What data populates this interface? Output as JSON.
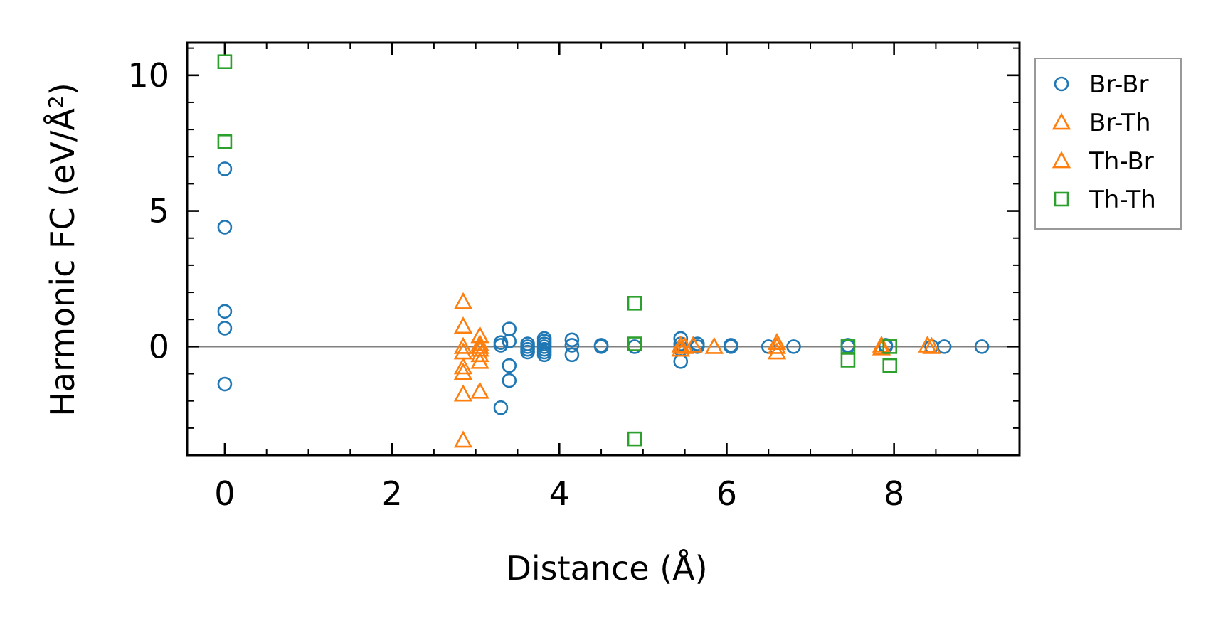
{
  "chart_data": {
    "type": "scatter",
    "title": "",
    "xlabel": "Distance (Å)",
    "ylabel_main": "Harmonic FC (eV/Å",
    "ylabel_sup": "2",
    "ylabel_close": ")",
    "xlim": [
      -0.45,
      9.5
    ],
    "ylim": [
      -4.0,
      11.2
    ],
    "xticks": [
      0,
      2,
      4,
      6,
      8
    ],
    "yticks": [
      0,
      5,
      10
    ],
    "xtick_labels": [
      "0",
      "2",
      "4",
      "6",
      "8"
    ],
    "ytick_labels": [
      "0",
      "5",
      "10"
    ],
    "x_minor_step": 0.5,
    "y_minor_step": 1,
    "zero_line": true,
    "grid": false,
    "legend_position": "outside-top-right",
    "series": [
      {
        "name": "Br-Br",
        "marker": "circle",
        "color": "#1f77b4",
        "points": [
          [
            0,
            6.55
          ],
          [
            0,
            4.4
          ],
          [
            0,
            1.3
          ],
          [
            0,
            0.68
          ],
          [
            0,
            -1.38
          ],
          [
            3.3,
            0.15
          ],
          [
            3.3,
            0.05
          ],
          [
            3.3,
            -2.25
          ],
          [
            3.4,
            0.65
          ],
          [
            3.4,
            0.2
          ],
          [
            3.4,
            -0.7
          ],
          [
            3.4,
            -1.25
          ],
          [
            3.62,
            0.1
          ],
          [
            3.62,
            0.0
          ],
          [
            3.62,
            -0.1
          ],
          [
            3.62,
            -0.2
          ],
          [
            3.82,
            0.3
          ],
          [
            3.82,
            0.2
          ],
          [
            3.82,
            0.1
          ],
          [
            3.82,
            0.0
          ],
          [
            3.82,
            -0.1
          ],
          [
            3.82,
            -0.2
          ],
          [
            3.82,
            -0.3
          ],
          [
            4.15,
            0.25
          ],
          [
            4.15,
            0.05
          ],
          [
            4.15,
            -0.3
          ],
          [
            4.5,
            0.05
          ],
          [
            4.5,
            0.0
          ],
          [
            4.9,
            0.0
          ],
          [
            5.45,
            0.3
          ],
          [
            5.45,
            0.1
          ],
          [
            5.45,
            -0.1
          ],
          [
            5.45,
            -0.55
          ],
          [
            5.65,
            0.1
          ],
          [
            5.65,
            0.0
          ],
          [
            6.05,
            0.05
          ],
          [
            6.05,
            0.0
          ],
          [
            6.5,
            0.0
          ],
          [
            6.8,
            0.0
          ],
          [
            7.45,
            0.05
          ],
          [
            7.45,
            0.0
          ],
          [
            7.9,
            0.05
          ],
          [
            7.9,
            0.0
          ],
          [
            8.45,
            0.0
          ],
          [
            8.6,
            0.0
          ],
          [
            9.05,
            0.0
          ]
        ]
      },
      {
        "name": "Br-Th",
        "marker": "triangle",
        "color": "#ff7f0e",
        "points": [
          [
            2.85,
            1.65
          ],
          [
            2.85,
            0.75
          ],
          [
            2.85,
            -0.2
          ],
          [
            2.85,
            -0.75
          ],
          [
            2.85,
            -0.95
          ],
          [
            2.85,
            -1.75
          ],
          [
            2.85,
            -3.45
          ],
          [
            3.05,
            0.4
          ],
          [
            3.05,
            0.1
          ],
          [
            3.05,
            -0.1
          ],
          [
            3.05,
            -0.3
          ],
          [
            3.05,
            -0.55
          ],
          [
            3.05,
            -1.65
          ],
          [
            5.45,
            0.05
          ],
          [
            5.45,
            -0.1
          ],
          [
            5.6,
            0.05
          ],
          [
            5.85,
            0.0
          ],
          [
            6.6,
            0.15
          ],
          [
            6.6,
            -0.2
          ],
          [
            7.85,
            0.05
          ],
          [
            8.45,
            0.0
          ]
        ]
      },
      {
        "name": "Th-Br",
        "marker": "triangle",
        "color": "#ff7f0e",
        "points": [
          [
            2.85,
            0.0
          ],
          [
            3.05,
            0.0
          ],
          [
            5.5,
            0.0
          ],
          [
            6.6,
            0.0
          ],
          [
            7.85,
            -0.05
          ],
          [
            8.4,
            0.05
          ]
        ]
      },
      {
        "name": "Th-Th",
        "marker": "square",
        "color": "#2ca02c",
        "points": [
          [
            0,
            10.5
          ],
          [
            0,
            7.55
          ],
          [
            4.9,
            1.6
          ],
          [
            4.9,
            0.1
          ],
          [
            4.9,
            -3.4
          ],
          [
            7.45,
            0.0
          ],
          [
            7.45,
            -0.5
          ],
          [
            7.95,
            0.0
          ],
          [
            7.95,
            -0.7
          ]
        ]
      }
    ],
    "zero_line_color": "#808080",
    "axes_color": "#000000",
    "legend_border_color": "#999999"
  }
}
